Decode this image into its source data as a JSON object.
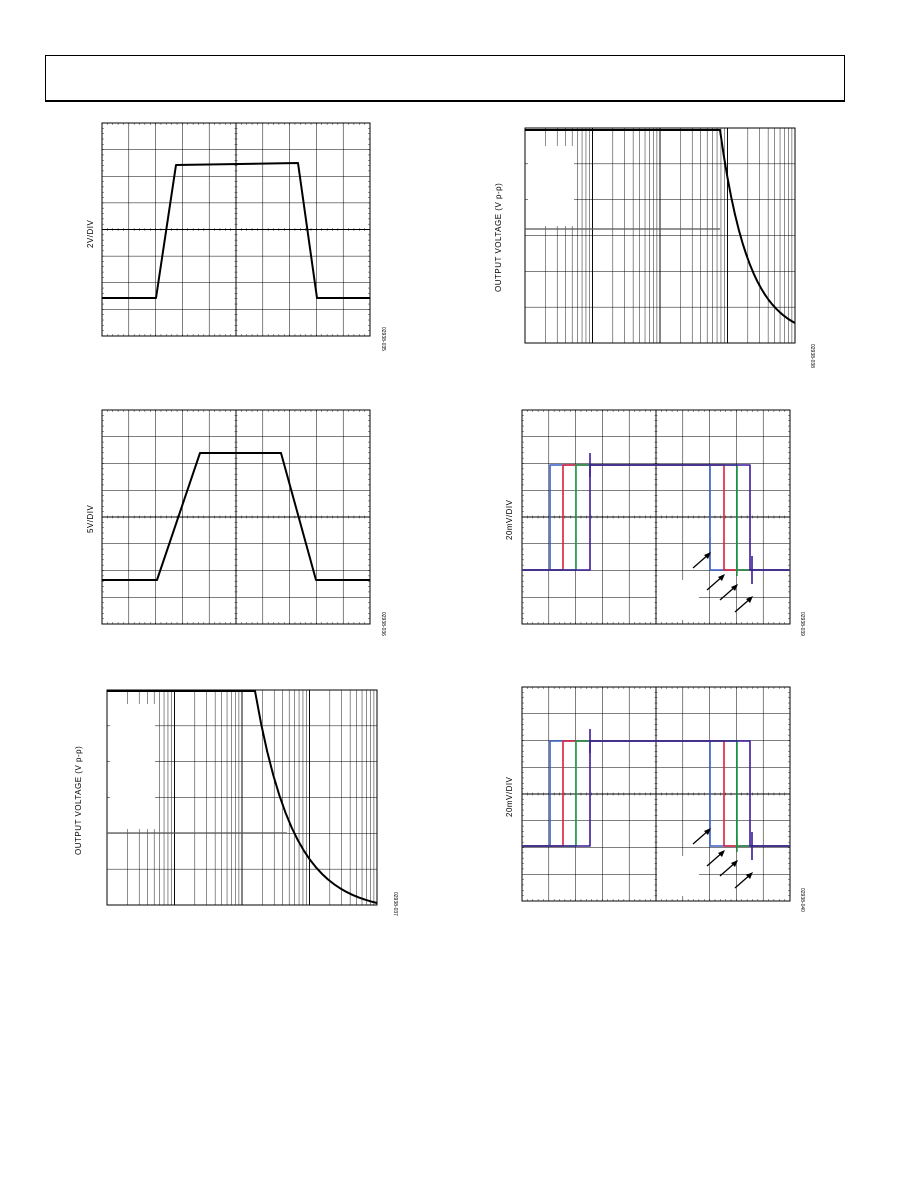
{
  "figures": [
    {
      "id": "f1",
      "ylabel": "2V/DIV",
      "fignum": "02938-035"
    },
    {
      "id": "f2",
      "ylabel": "5V/DIV",
      "fignum": "02938-036"
    },
    {
      "id": "f3",
      "ylabel": "OUTPUT VOLTAGE (V p-p)",
      "fignum": "02938-037"
    },
    {
      "id": "f4",
      "ylabel": "OUTPUT VOLTAGE (V p-p)",
      "fignum": "02938-038"
    },
    {
      "id": "f5",
      "ylabel": "20mV/DIV",
      "fignum": "02938-039"
    },
    {
      "id": "f6",
      "ylabel": "20mV/DIV",
      "fignum": "02938-040"
    }
  ],
  "trace_colors": {
    "blue": "#3a5fc8",
    "red": "#e0203a",
    "green": "#1a9a4a",
    "purple": "#3a1a9a"
  }
}
